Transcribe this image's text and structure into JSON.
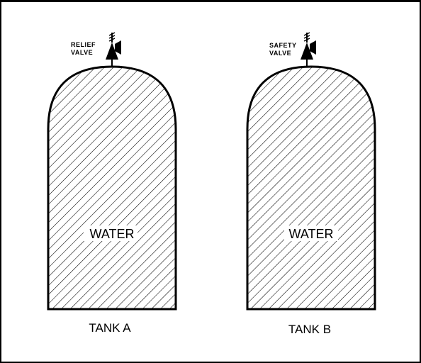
{
  "diagram": {
    "tanks": [
      {
        "id": "tank-a",
        "label": "TANK A",
        "content": "WATER",
        "valve": {
          "line1": "RELIEF",
          "line2": "VALVE",
          "icon": "valve-icon"
        }
      },
      {
        "id": "tank-b",
        "label": "TANK B",
        "content": "WATER",
        "valve": {
          "line1": "SAFETY",
          "line2": "VALVE",
          "icon": "valve-icon"
        }
      }
    ],
    "colors": {
      "stroke": "#000000",
      "background": "#ffffff",
      "hatch": "#000000"
    }
  }
}
